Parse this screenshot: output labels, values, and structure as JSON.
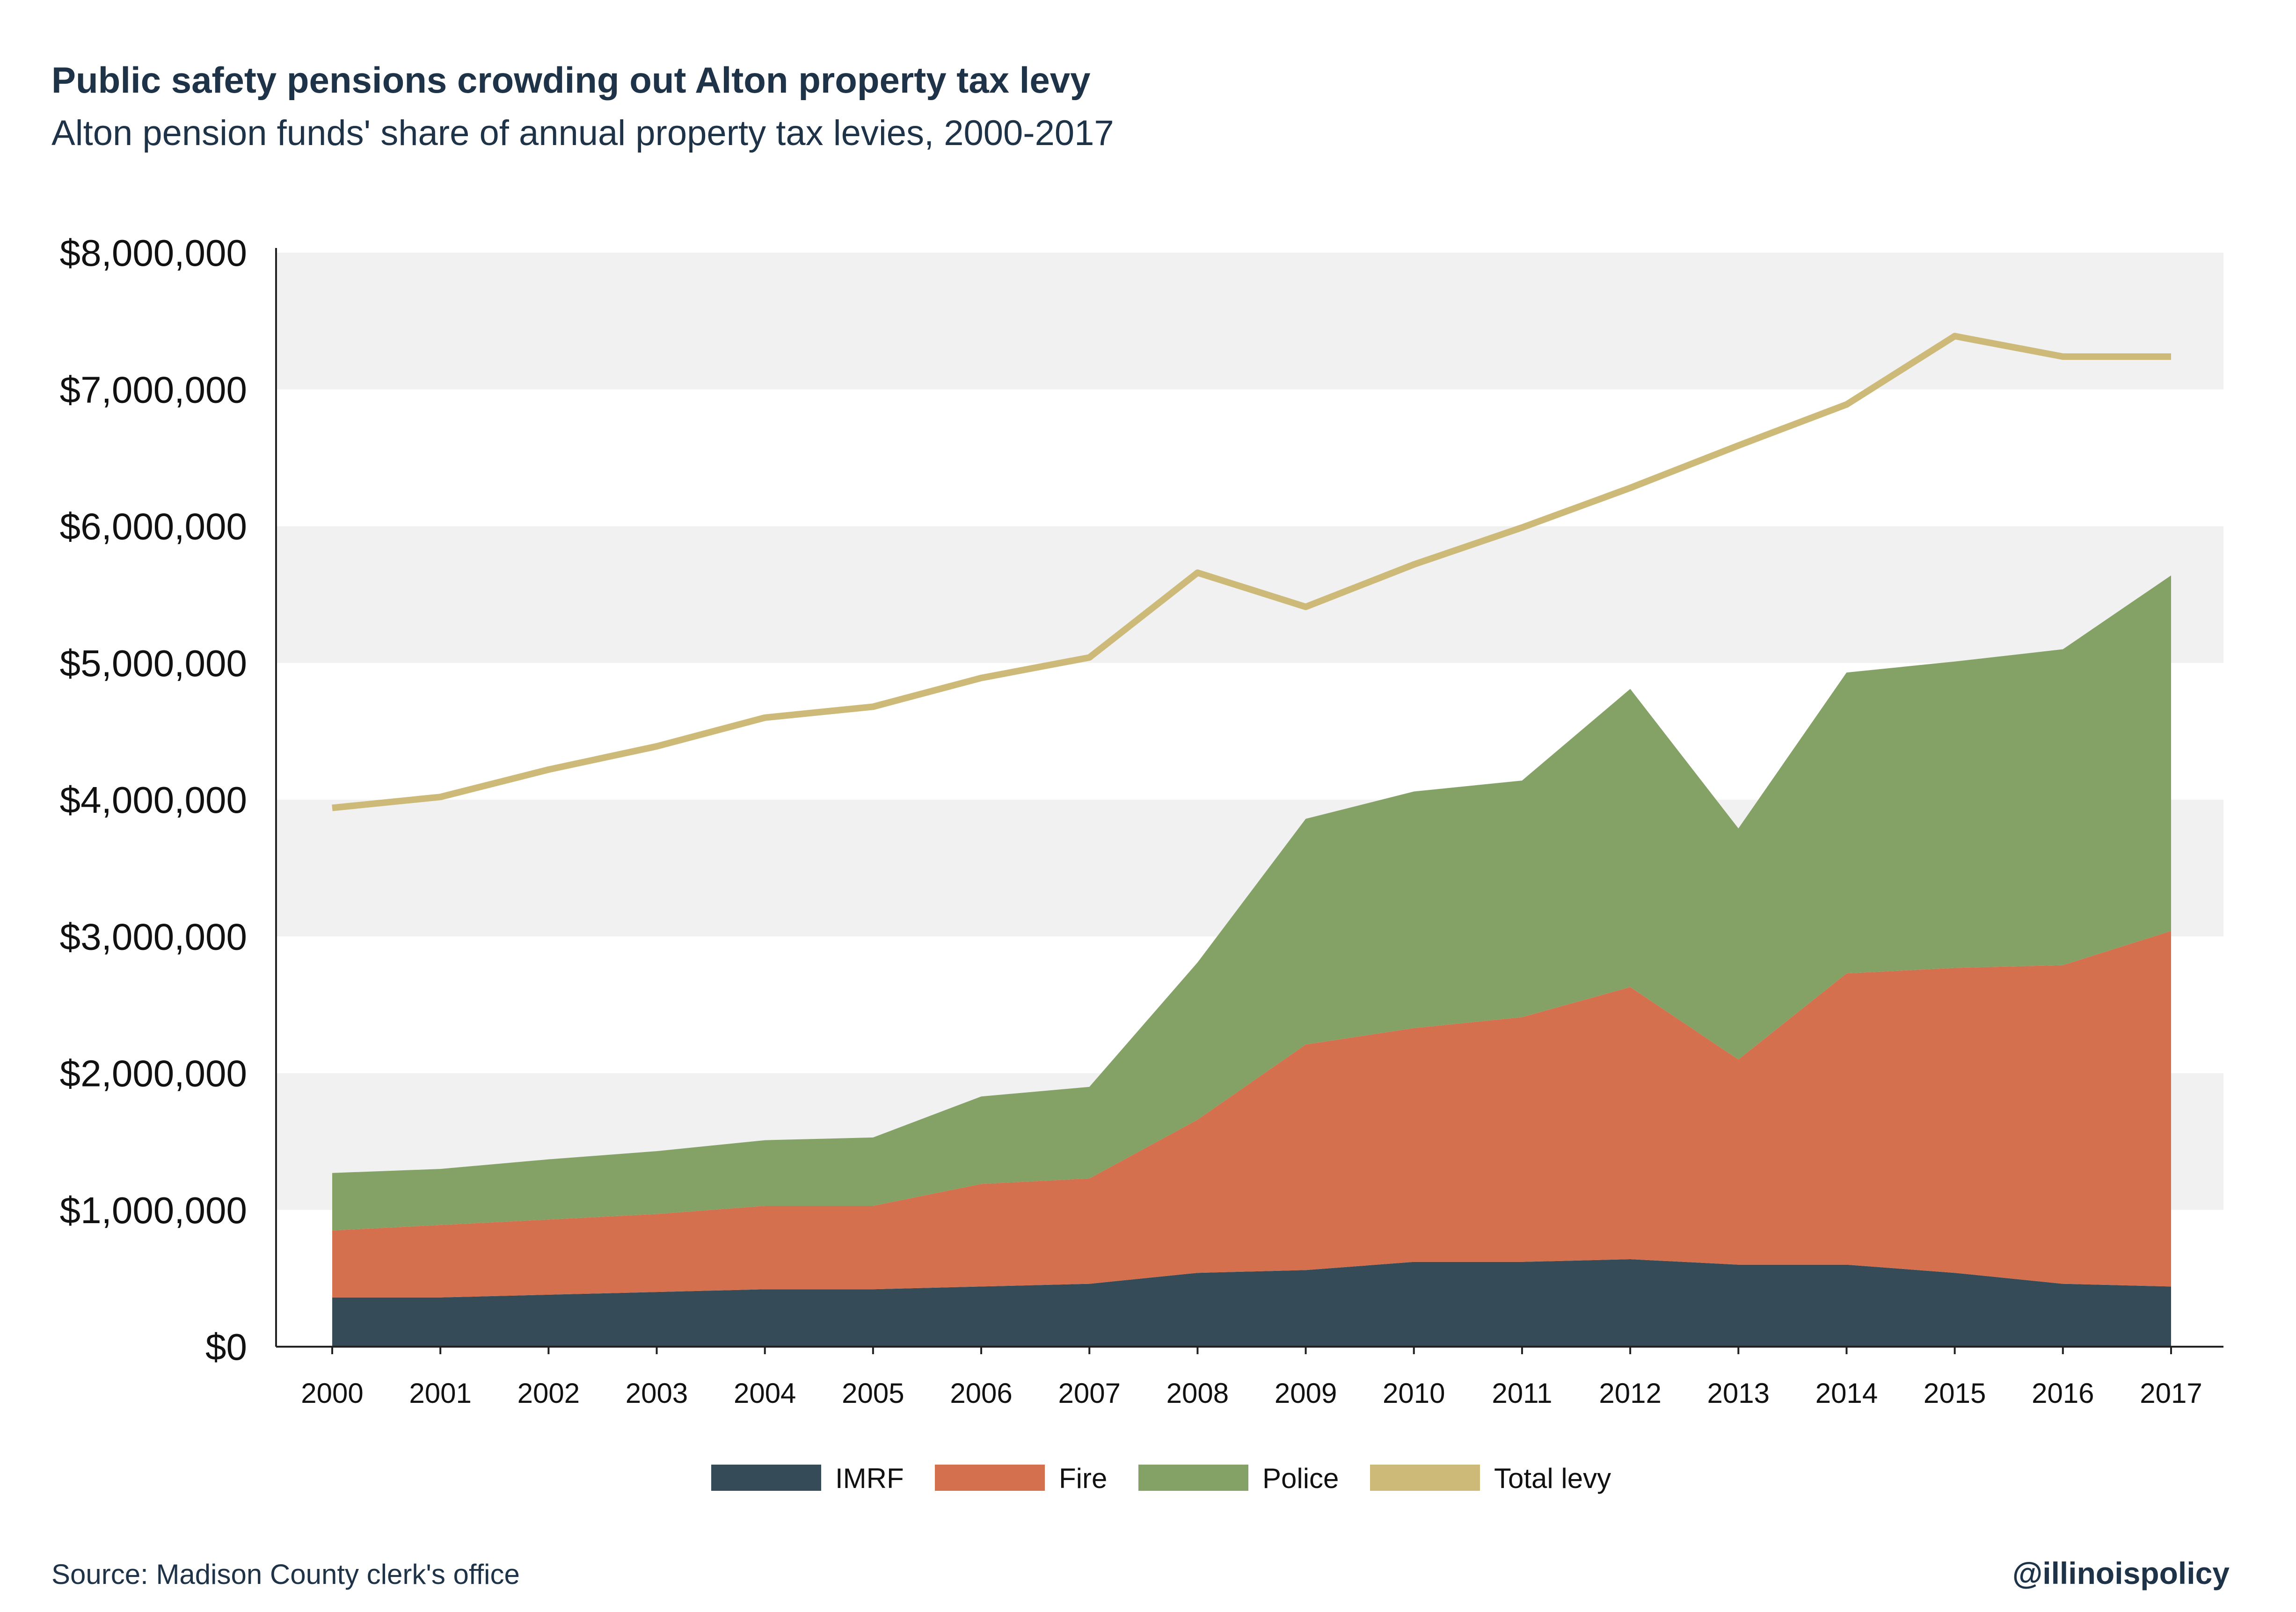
{
  "title": "Public safety pensions crowding out Alton property tax levy",
  "subtitle": "Alton pension funds' share of annual property tax levies, 2000-2017",
  "source": "Source: Madison County clerk's office",
  "brand": "@illinoispolicy",
  "colors": {
    "imrf": "#354b58",
    "fire": "#d5704e",
    "police": "#84a166",
    "total": "#cdb978",
    "band": "#f1f1f1",
    "axis": "#222222",
    "text_dark": "#1e3348"
  },
  "chart_data": {
    "type": "area",
    "stacked": true,
    "categories": [
      "2000",
      "2001",
      "2002",
      "2003",
      "2004",
      "2005",
      "2006",
      "2007",
      "2008",
      "2009",
      "2010",
      "2011",
      "2012",
      "2013",
      "2014",
      "2015",
      "2016",
      "2017"
    ],
    "ylim": [
      0,
      8000000
    ],
    "yticks": [
      0,
      1000000,
      2000000,
      3000000,
      4000000,
      5000000,
      6000000,
      7000000,
      8000000
    ],
    "ytick_labels": [
      "$0",
      "$1,000,000",
      "$2,000,000",
      "$3,000,000",
      "$4,000,000",
      "$5,000,000",
      "$6,000,000",
      "$7,000,000",
      "$8,000,000"
    ],
    "grid": "alternating horizontal bands",
    "legend": "bottom-center",
    "series": [
      {
        "name": "IMRF",
        "kind": "area",
        "color": "#354b58",
        "values": [
          360000,
          360000,
          380000,
          400000,
          420000,
          420000,
          440000,
          460000,
          540000,
          560000,
          620000,
          620000,
          640000,
          600000,
          600000,
          540000,
          460000,
          440000
        ]
      },
      {
        "name": "Fire",
        "kind": "area",
        "color": "#d5704e",
        "values": [
          490000,
          530000,
          550000,
          570000,
          610000,
          610000,
          750000,
          770000,
          1120000,
          1650000,
          1710000,
          1790000,
          1990000,
          1500000,
          2130000,
          2230000,
          2330000,
          2600000
        ]
      },
      {
        "name": "Police",
        "kind": "area",
        "color": "#84a166",
        "values": [
          420000,
          410000,
          440000,
          460000,
          480000,
          500000,
          640000,
          670000,
          1150000,
          1650000,
          1730000,
          1730000,
          2180000,
          1690000,
          2200000,
          2240000,
          2310000,
          2600000
        ]
      },
      {
        "name": "Total levy",
        "kind": "line",
        "color": "#cdb978",
        "values": [
          3940000,
          4020000,
          4220000,
          4390000,
          4600000,
          4680000,
          4890000,
          5040000,
          5660000,
          5410000,
          5720000,
          5990000,
          6280000,
          6590000,
          6890000,
          7390000,
          7240000,
          7240000
        ]
      }
    ]
  }
}
